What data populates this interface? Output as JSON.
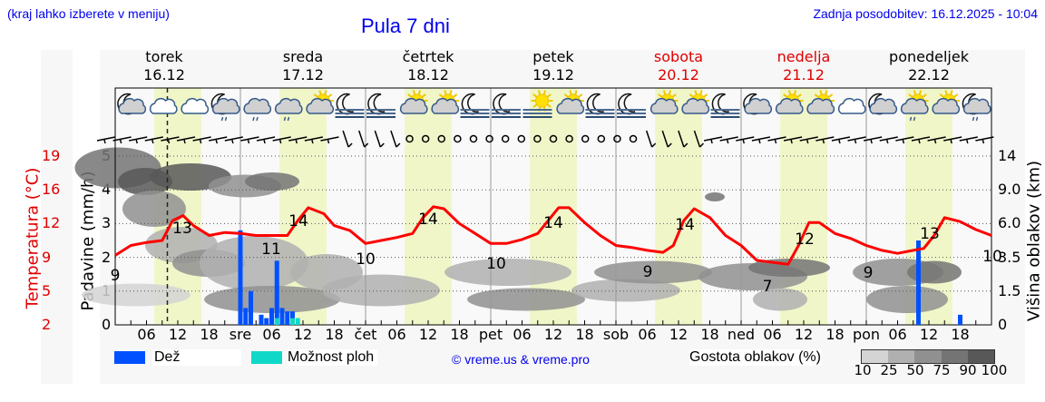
{
  "header": {
    "location_hint": "(kraj lahko izberete v meniju)",
    "title": "Pula 7 dni",
    "last_update": "Zadnja posodobitev: 16.12.2025 - 10:04"
  },
  "days": [
    {
      "name": "torek",
      "date": "16.12",
      "weekend": false
    },
    {
      "name": "sreda",
      "date": "17.12",
      "weekend": false
    },
    {
      "name": "četrtek",
      "date": "18.12",
      "weekend": false
    },
    {
      "name": "petek",
      "date": "19.12",
      "weekend": false
    },
    {
      "name": "sobota",
      "date": "20.12",
      "weekend": true
    },
    {
      "name": "nedelja",
      "date": "21.12",
      "weekend": true
    },
    {
      "name": "ponedeljek",
      "date": "22.12",
      "weekend": false
    }
  ],
  "weather_icons": [
    "moon-cloud",
    "cloud-partly-night",
    "cloud",
    "moon-cloud-rain",
    "cloud-rain",
    "cloud-rain",
    "sun-cloud",
    "moon-fog",
    "moon-fog",
    "sun-cloud",
    "sun-cloud",
    "moon-fog",
    "moon-fog",
    "sun-fog",
    "sun-cloud",
    "moon-fog",
    "moon-fog",
    "sun-cloud",
    "sun-cloud",
    "moon-fog",
    "moon-cloud",
    "sun-cloud",
    "sun-cloud",
    "cloud",
    "moon-cloud",
    "sun-cloud-rain",
    "sun-cloud",
    "moon-cloud-rain"
  ],
  "axes": {
    "left_precip_label": "Padavine (mm/h)",
    "left_precip_ticks": [
      "0",
      "1",
      "2",
      "3",
      "4",
      "5"
    ],
    "left_temp_label": "Temperatura (°C)",
    "left_temp_ticks": [
      "2",
      "5",
      "9",
      "12",
      "16",
      "19"
    ],
    "right_label": "Višina oblakov (km)",
    "right_ticks": [
      "0",
      "1.5",
      "3.5",
      "6.0",
      "9.0",
      "14"
    ],
    "x_ticks": [
      "06",
      "12",
      "18",
      "sre",
      "06",
      "12",
      "18",
      "čet",
      "06",
      "12",
      "18",
      "pet",
      "06",
      "12",
      "18",
      "sob",
      "06",
      "12",
      "18",
      "ned",
      "06",
      "12",
      "18",
      "pon",
      "06",
      "12",
      "18"
    ]
  },
  "legend": {
    "rain_label": "Dež",
    "rain_color": "#0050ff",
    "showers_label": "Možnost ploh",
    "showers_color": "#10d8c8",
    "copyright": "© vreme.us & vreme.pro",
    "cloud_density_label": "Gostota oblakov (%)",
    "cloud_density_ticks": [
      "10",
      "25",
      "50",
      "75",
      "90",
      "100"
    ],
    "cloud_density_colors": [
      "#d4d4d4",
      "#b0b0b0",
      "#909090",
      "#747474",
      "#585858"
    ]
  },
  "chart_data": {
    "type": "line",
    "title": "Pula 7 dni",
    "xlabel": "",
    "ylabel": "Padavine (mm/h) / Temperatura (°C)",
    "x_unit": "hours from 16.12 00:00",
    "now_marker_hour": 10,
    "daylight_hours": [
      7.5,
      16.5
    ],
    "series": [
      {
        "name": "Temperatura (°C)",
        "color": "#ff0000",
        "x": [
          0,
          3,
          6,
          9,
          11,
          13,
          15,
          18,
          21,
          24,
          27,
          30,
          33,
          35,
          37,
          40,
          42,
          45,
          48,
          51,
          54,
          57,
          59,
          61,
          63,
          66,
          69,
          72,
          75,
          78,
          81,
          83,
          85,
          87,
          90,
          93,
          96,
          99,
          102,
          105,
          107,
          109,
          111,
          114,
          117,
          120,
          123,
          126,
          129,
          131,
          133,
          135,
          138,
          141,
          144,
          147,
          150,
          153,
          155,
          157,
          159,
          162,
          165,
          168
        ],
        "values": [
          9,
          10,
          10.3,
          10.5,
          12.5,
          13,
          12,
          11,
          11.3,
          11.2,
          11,
          11,
          11,
          12.5,
          13.8,
          13.2,
          12,
          11.5,
          10.2,
          10.5,
          10.8,
          11.2,
          12.8,
          13.9,
          13.7,
          12.2,
          11.2,
          10.2,
          10.2,
          10.6,
          11.2,
          12.5,
          13.8,
          13.8,
          12.3,
          11,
          10,
          9.8,
          9.5,
          9.3,
          10,
          12.5,
          13.7,
          12.8,
          11,
          10,
          8.5,
          8.3,
          8.1,
          10,
          12.3,
          12.3,
          11.2,
          10.7,
          10,
          9.5,
          9.2,
          9.5,
          9.7,
          11,
          12.8,
          12.4,
          11.6,
          11
        ]
      },
      {
        "name": "Dež (mm/h)",
        "type": "bar",
        "color": "#0050ff",
        "x": [
          24,
          25,
          26,
          28,
          29,
          30,
          31,
          32,
          33,
          34,
          35,
          154,
          162
        ],
        "values": [
          2.8,
          0.5,
          1.0,
          0.3,
          0.2,
          0.5,
          1.9,
          0.5,
          0.4,
          0.4,
          0.0,
          2.5,
          0.3
        ]
      },
      {
        "name": "Možnost ploh (mm/h)",
        "type": "bar",
        "color": "#10d8c8",
        "x": [
          31,
          34,
          35
        ],
        "values": [
          0.2,
          0.2,
          0.2
        ]
      }
    ],
    "temperature_labels": [
      {
        "hour": 0,
        "value": "9"
      },
      {
        "hour": 13,
        "value": "13"
      },
      {
        "hour": 30,
        "value": "11"
      },
      {
        "hour": 36,
        "value": "14"
      },
      {
        "hour": 48,
        "value": "10"
      },
      {
        "hour": 60,
        "value": "14"
      },
      {
        "hour": 72,
        "value": "10"
      },
      {
        "hour": 84,
        "value": "14"
      },
      {
        "hour": 102,
        "value": "9"
      },
      {
        "hour": 108,
        "value": "14"
      },
      {
        "hour": 125,
        "value": "7"
      },
      {
        "hour": 132,
        "value": "12"
      },
      {
        "hour": 144,
        "value": "9"
      },
      {
        "hour": 155,
        "value": "13"
      },
      {
        "hour": 167,
        "value": "10"
      }
    ],
    "ylim_precip": [
      0,
      5
    ],
    "ylim_temp": [
      2,
      19
    ],
    "ylim_cloud_height_km": [
      0,
      14
    ],
    "grid": true,
    "legend_position": "bottom"
  }
}
